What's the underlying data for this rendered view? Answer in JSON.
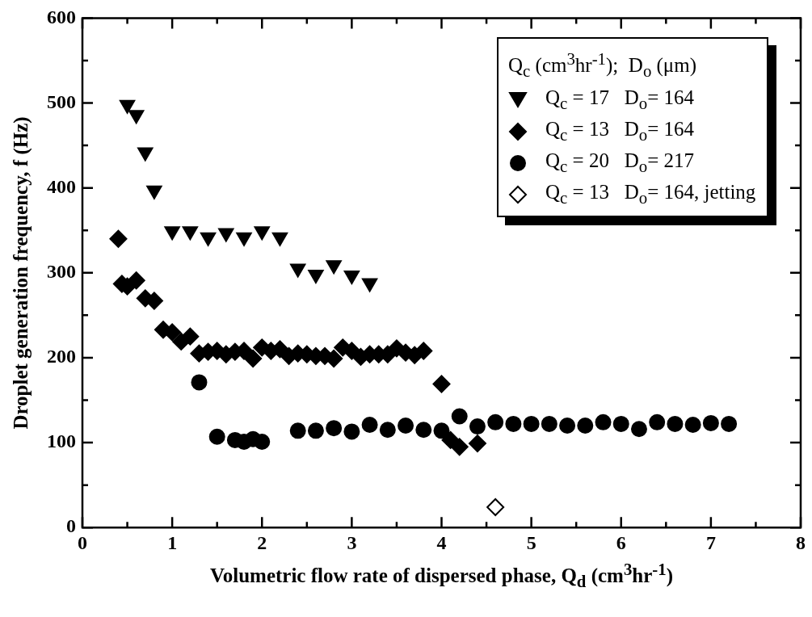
{
  "chart_data": {
    "type": "scatter",
    "xlabel": "Volumetric flow rate of dispersed phase, Q$_{d}$ (cm$^{3}$hr$^{-1}$)",
    "ylabel": "Droplet generation frequency, f (Hz)",
    "legend_title": "Q$_{c}$ (cm$^{3}$hr$^{-1}$);  D$_{o}$ (μm)",
    "legend": "top right",
    "grid": false,
    "xlim": [
      0,
      8
    ],
    "xticks": [
      0,
      {
        "value": 0.5,
        "label": null
      },
      1,
      {
        "value": 1.5,
        "label": null
      },
      2,
      {
        "value": 2.5,
        "label": null
      },
      3,
      {
        "value": 3.5,
        "label": null
      },
      4,
      {
        "value": 4.5,
        "label": null
      },
      5,
      {
        "value": 5.5,
        "label": null
      },
      6,
      {
        "value": 6.5,
        "label": null
      },
      7,
      {
        "value": 7.5,
        "label": null
      },
      8
    ],
    "ylim": [
      0,
      600
    ],
    "yticks": [
      0,
      {
        "value": 50,
        "label": null
      },
      100,
      {
        "value": 150,
        "label": null
      },
      200,
      {
        "value": 250,
        "label": null
      },
      300,
      {
        "value": 350,
        "label": null
      },
      400,
      {
        "value": 450,
        "label": null
      },
      500,
      {
        "value": 550,
        "label": null
      },
      600
    ],
    "series": [
      {
        "name": "Q$_{c}$ = 17   D$_{o}$= 164",
        "color": "#000000",
        "marker": "triangle",
        "x": [
          0.5,
          0.6,
          0.7,
          0.8,
          1.0,
          1.2,
          1.4,
          1.6,
          1.8,
          2.0,
          2.2,
          2.4,
          2.6,
          2.8,
          3.0,
          3.2
        ],
        "values": [
          498,
          486,
          442,
          397,
          349,
          349,
          342,
          347,
          342,
          349,
          342,
          305,
          298,
          309,
          297,
          288
        ]
      },
      {
        "name": "Q$_{c}$ = 13   D$_{o}$= 164",
        "color": "#000000",
        "marker": "diamond",
        "x": [
          0.4,
          0.44,
          0.5,
          0.6,
          0.7,
          0.8,
          0.9,
          1.0,
          1.1,
          1.2,
          1.3,
          1.4,
          1.5,
          1.6,
          1.7,
          1.8,
          1.9,
          2.0,
          2.1,
          2.2,
          2.3,
          2.4,
          2.5,
          2.6,
          2.7,
          2.8,
          2.9,
          3.0,
          3.1,
          3.2,
          3.3,
          3.4,
          3.5,
          3.6,
          3.7,
          3.8,
          4.0,
          4.1,
          4.2,
          4.4
        ],
        "values": [
          340,
          287,
          284,
          291,
          270,
          267,
          233,
          230,
          219,
          225,
          205,
          207,
          208,
          204,
          207,
          208,
          199,
          212,
          208,
          210,
          202,
          205,
          204,
          202,
          202,
          199,
          212,
          208,
          201,
          204,
          204,
          204,
          211,
          206,
          203,
          208,
          169,
          103,
          95,
          99
        ]
      },
      {
        "name": "Q$_{c}$ = 20   D$_{o}$= 217",
        "color": "#000000",
        "marker": "circle",
        "x": [
          1.3,
          1.5,
          1.7,
          1.8,
          1.9,
          2.0,
          2.4,
          2.6,
          2.8,
          3.0,
          3.2,
          3.4,
          3.6,
          3.8,
          4.0,
          4.2,
          4.4,
          4.6,
          4.8,
          5.0,
          5.2,
          5.4,
          5.6,
          5.8,
          6.0,
          6.2,
          6.4,
          6.6,
          6.8,
          7.0,
          7.2
        ],
        "values": [
          171,
          107,
          103,
          101,
          104,
          101,
          114,
          114,
          117,
          113,
          121,
          115,
          120,
          115,
          114,
          131,
          119,
          124,
          122,
          122,
          122,
          120,
          120,
          124,
          122,
          116,
          124,
          122,
          121,
          123,
          122
        ]
      },
      {
        "name": "Q$_{c}$ = 13   D$_{o}$= 164, jetting",
        "color": "#ffffff",
        "marker": "diamond",
        "x": [
          4.6
        ],
        "values": [
          24
        ]
      }
    ]
  }
}
